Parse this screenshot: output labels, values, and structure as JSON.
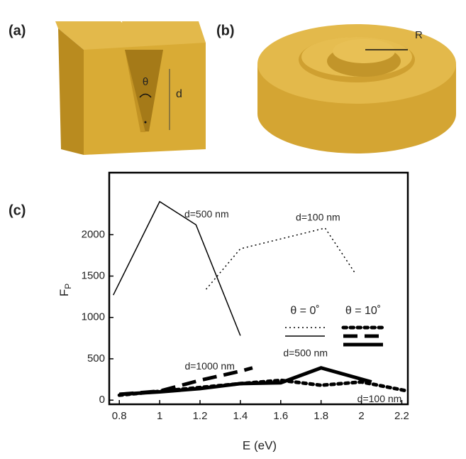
{
  "illustrations": {
    "a": {
      "label": "(a)",
      "angle": "θ",
      "depth": "d"
    },
    "b": {
      "label": "(b)",
      "radius": "R"
    }
  },
  "chart_data": {
    "type": "line",
    "panel_label": "(c)",
    "xlabel": "E (eV)",
    "ylabel": "F",
    "ylabel_sub": "P",
    "xlim": [
      0.75,
      2.23
    ],
    "ylim": [
      -50,
      2750
    ],
    "xticks": [
      0.8,
      1.0,
      1.2,
      1.4,
      1.6,
      1.8,
      2.0,
      2.2
    ],
    "yticks": [
      0,
      500,
      1000,
      1500,
      2000
    ],
    "series": [
      {
        "name": "θ = 0˚",
        "label": "d=500 nm",
        "color": "#000000",
        "dash": "solid",
        "width": 1.5,
        "x": [
          0.77,
          1.0,
          1.18,
          1.4
        ],
        "values": [
          1270,
          2400,
          2120,
          780
        ]
      },
      {
        "name": "θ = 0˚",
        "label": "d=100 nm",
        "color": "#000000",
        "dash": "dotted",
        "width": 1.5,
        "x": [
          1.23,
          1.4,
          1.82,
          1.97
        ],
        "values": [
          1340,
          1830,
          2080,
          1530
        ]
      },
      {
        "name": "θ = 10˚",
        "label": "d=1000 nm",
        "color": "#000000",
        "dash": "dashed",
        "width": 5,
        "x": [
          0.8,
          1.0,
          1.2,
          1.4,
          1.46
        ],
        "values": [
          70,
          110,
          240,
          350,
          390
        ]
      },
      {
        "name": "θ = 10˚",
        "label": "d=500 nm",
        "color": "#000000",
        "dash": "solid",
        "width": 5,
        "x": [
          0.8,
          1.0,
          1.2,
          1.4,
          1.6,
          1.8,
          2.05
        ],
        "values": [
          70,
          100,
          140,
          200,
          210,
          390,
          220
        ]
      },
      {
        "name": "θ = 10˚",
        "label": "d=100 nm",
        "color": "#000000",
        "dash": "dotted",
        "width": 5,
        "x": [
          0.8,
          1.4,
          1.6,
          1.8,
          2.0,
          2.23
        ],
        "values": [
          60,
          200,
          240,
          180,
          220,
          110
        ]
      }
    ]
  }
}
